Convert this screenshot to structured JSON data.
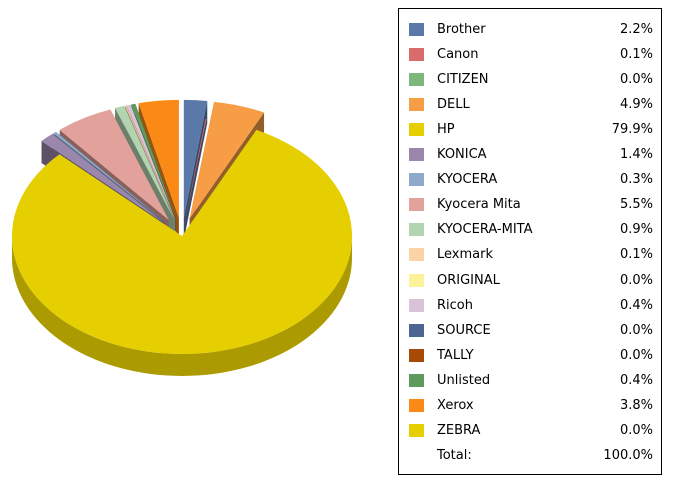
{
  "chart_data": {
    "type": "pie",
    "title": "",
    "legend_position": "right",
    "series": [
      {
        "name": "Brother",
        "value": 2.2,
        "label": "2.2%",
        "color": "#5b79a8",
        "explode": true
      },
      {
        "name": "Canon",
        "value": 0.1,
        "label": "0.1%",
        "color": "#d96b6b",
        "explode": false
      },
      {
        "name": "CITIZEN",
        "value": 0.0,
        "label": "0.0%",
        "color": "#7cb87c",
        "explode": false
      },
      {
        "name": "DELL",
        "value": 4.9,
        "label": "4.9%",
        "color": "#f79d46",
        "explode": true
      },
      {
        "name": "HP",
        "value": 79.9,
        "label": "79.9%",
        "color": "#e5cf00",
        "explode": false
      },
      {
        "name": "KONICA",
        "value": 1.4,
        "label": "1.4%",
        "color": "#9a87ab",
        "explode": true
      },
      {
        "name": "KYOCERA",
        "value": 0.3,
        "label": "0.3%",
        "color": "#8fa9cc",
        "explode": true
      },
      {
        "name": "Kyocera Mita",
        "value": 5.5,
        "label": "5.5%",
        "color": "#e3a19b",
        "explode": true
      },
      {
        "name": "KYOCERA-MITA",
        "value": 0.9,
        "label": "0.9%",
        "color": "#b3d4b0",
        "explode": true
      },
      {
        "name": "Lexmark",
        "value": 0.1,
        "label": "0.1%",
        "color": "#fcd3a4",
        "explode": true
      },
      {
        "name": "ORIGINAL",
        "value": 0.0,
        "label": "0.0%",
        "color": "#fbf29a",
        "explode": false
      },
      {
        "name": "Ricoh",
        "value": 0.4,
        "label": "0.4%",
        "color": "#d9c3d9",
        "explode": true
      },
      {
        "name": "SOURCE",
        "value": 0.0,
        "label": "0.0%",
        "color": "#4d6691",
        "explode": false
      },
      {
        "name": "TALLY",
        "value": 0.0,
        "label": "0.0%",
        "color": "#a64a06",
        "explode": false
      },
      {
        "name": "Unlisted",
        "value": 0.4,
        "label": "0.4%",
        "color": "#5e9a5e",
        "explode": true
      },
      {
        "name": "Xerox",
        "value": 3.8,
        "label": "3.8%",
        "color": "#fa8a15",
        "explode": true
      },
      {
        "name": "ZEBRA",
        "value": 0.0,
        "label": "0.0%",
        "color": "#e5cf00",
        "explode": false
      }
    ],
    "total_label": "Total:",
    "total_value": "100.0%"
  }
}
